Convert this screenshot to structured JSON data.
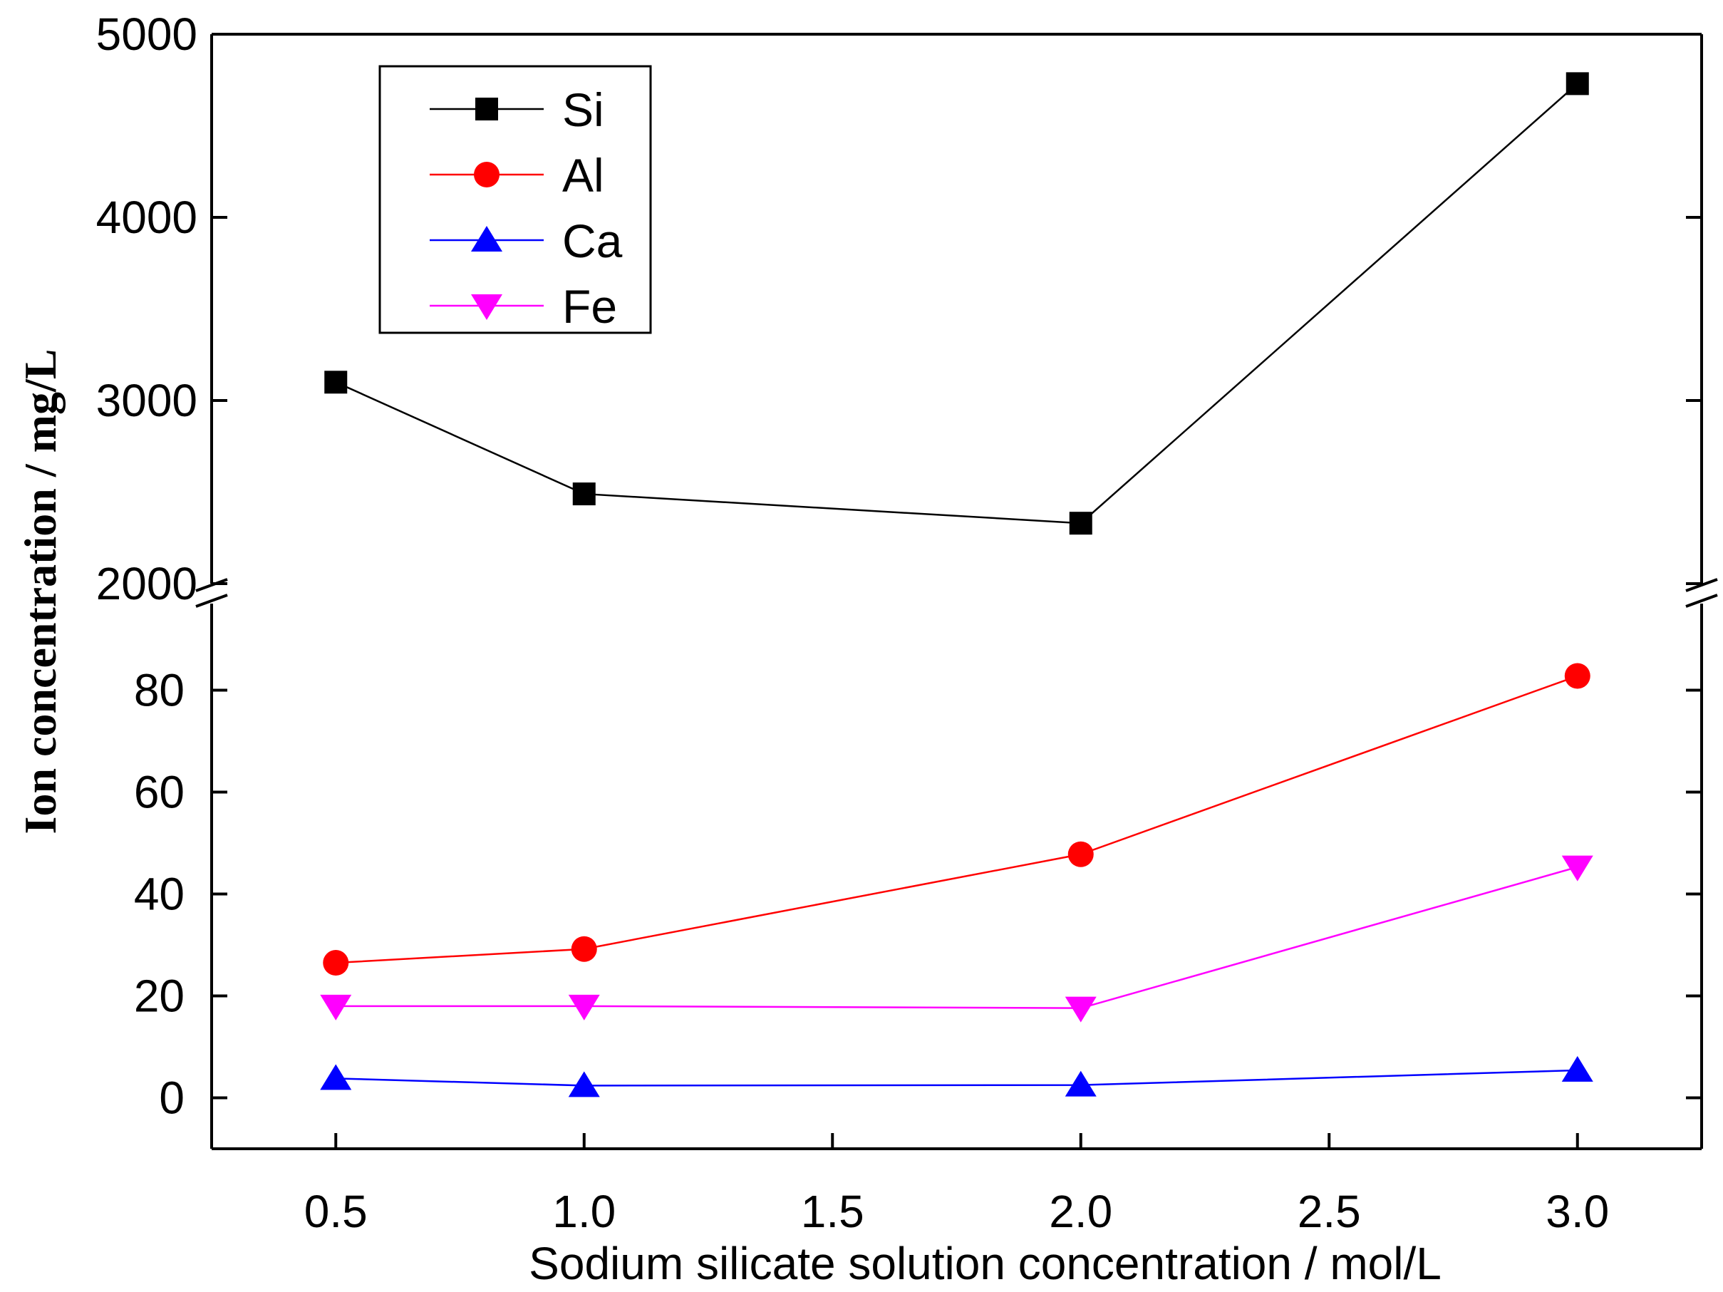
{
  "chart_data": {
    "type": "line",
    "title": "",
    "xlabel": "Sodium silicate solution concentration / mol/L",
    "ylabel": "Ion concentration / mg/L",
    "x": [
      0.5,
      1.0,
      2.0,
      3.0
    ],
    "xlim": [
      0.25,
      3.25
    ],
    "x_ticks": [
      0.5,
      1.0,
      1.5,
      2.0,
      2.5,
      3.0
    ],
    "x_tick_labels": [
      "0.5",
      "1.0",
      "1.5",
      "2.0",
      "2.5",
      "3.0"
    ],
    "y_axis_break": true,
    "y_upper_segment": {
      "range": [
        2000,
        5000
      ],
      "ticks": [
        2000,
        3000,
        4000,
        5000
      ],
      "tick_labels": [
        "2000",
        "3000",
        "4000",
        "5000"
      ]
    },
    "y_lower_segment": {
      "range": [
        -10,
        97
      ],
      "ticks": [
        0,
        20,
        40,
        60,
        80
      ],
      "tick_labels": [
        "0",
        "20",
        "40",
        "60",
        "80"
      ]
    },
    "legend_position": "top-left",
    "series": [
      {
        "name": "Si",
        "color": "#000000",
        "marker": "square",
        "segment": "upper",
        "values": [
          3100,
          2490,
          2330,
          4730
        ]
      },
      {
        "name": "Al",
        "color": "#ff0000",
        "marker": "circle",
        "segment": "lower",
        "values": [
          26.5,
          29.2,
          47.8,
          82.8
        ]
      },
      {
        "name": "Ca",
        "color": "#0000ff",
        "marker": "triangle-up",
        "segment": "lower",
        "values": [
          3.8,
          2.4,
          2.5,
          5.4
        ]
      },
      {
        "name": "Fe",
        "color": "#ff00ff",
        "marker": "triangle-down",
        "segment": "lower",
        "values": [
          18.0,
          18.0,
          17.6,
          45.3
        ]
      }
    ]
  }
}
